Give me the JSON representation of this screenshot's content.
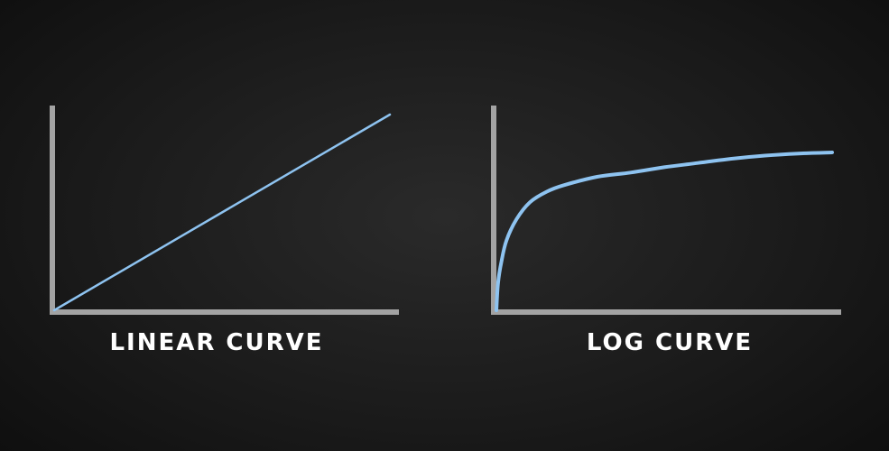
{
  "colors": {
    "background": "#1a1a1a",
    "axis": "#a3a3a3",
    "curve": "#8ec3f0",
    "label": "#ffffff"
  },
  "chart_data": [
    {
      "type": "line",
      "title": "LINEAR CURVE",
      "xlabel": "",
      "ylabel": "",
      "grid": false,
      "ticks": false,
      "xlim": [
        0,
        10
      ],
      "ylim": [
        0,
        10
      ],
      "series": [
        {
          "x": [
            0,
            10
          ],
          "y": [
            0,
            9.4
          ]
        }
      ]
    },
    {
      "type": "line",
      "title": "LOG CURVE",
      "xlabel": "",
      "ylabel": "",
      "grid": false,
      "ticks": false,
      "xlim": [
        0,
        10
      ],
      "ylim": [
        0,
        10
      ],
      "series": [
        {
          "x": [
            0,
            0.05,
            0.15,
            0.3,
            0.6,
            1,
            1.5,
            2,
            3,
            4,
            5,
            6,
            7,
            8,
            9,
            10
          ],
          "y": [
            0,
            1.3,
            2.3,
            3.3,
            4.3,
            5.1,
            5.6,
            5.9,
            6.3,
            6.5,
            6.75,
            6.95,
            7.15,
            7.3,
            7.4,
            7.45
          ]
        }
      ]
    }
  ]
}
